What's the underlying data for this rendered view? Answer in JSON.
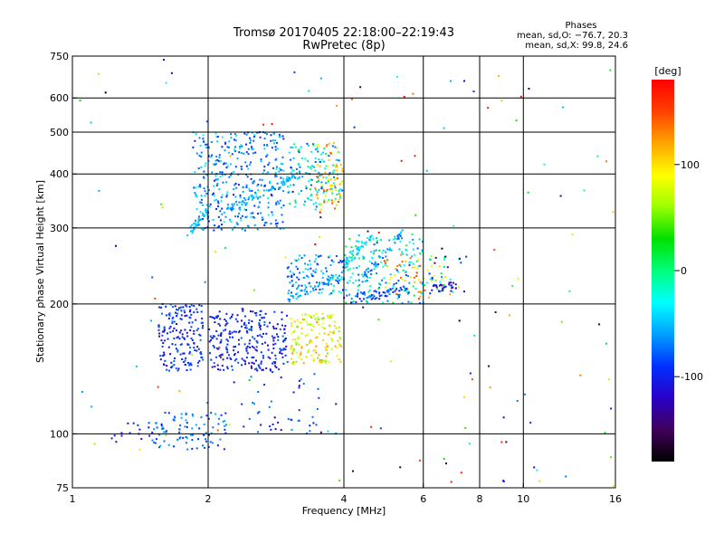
{
  "chart_data": {
    "type": "scatter",
    "title": "Tromsø 20170405 22:18:00–22:19:43",
    "subtitle": "RwPretec (8p)",
    "stats": {
      "heading": "Phases",
      "line_o": "mean, sd,O: −76.7, 20.3",
      "line_x": "mean, sd,X:  99.8, 24.6"
    },
    "xlabel": "Frequency [MHz]",
    "ylabel": "Stationary phase Virtual Height [km]",
    "x_scale": "log",
    "y_scale": "log",
    "xlim": [
      1,
      16
    ],
    "ylim": [
      75,
      750
    ],
    "xticks": [
      {
        "value": 1,
        "label": "1"
      },
      {
        "value": 2,
        "label": "2"
      },
      {
        "value": 4,
        "label": "4"
      },
      {
        "value": 6,
        "label": "6"
      },
      {
        "value": 8,
        "label": "8"
      },
      {
        "value": 10,
        "label": "10"
      },
      {
        "value": 16,
        "label": "16"
      }
    ],
    "yticks": [
      {
        "value": 75,
        "label": "75"
      },
      {
        "value": 100,
        "label": "100"
      },
      {
        "value": 200,
        "label": "200"
      },
      {
        "value": 300,
        "label": "300"
      },
      {
        "value": 400,
        "label": "400"
      },
      {
        "value": 500,
        "label": "500"
      },
      {
        "value": 600,
        "label": "600"
      },
      {
        "value": 750,
        "label": "750"
      }
    ],
    "x_gridlines": [
      2,
      4,
      6,
      8,
      10
    ],
    "y_gridlines": [
      100,
      200,
      300,
      400,
      500,
      600
    ],
    "grid": true,
    "colorbar": {
      "label": "[deg]",
      "range": [
        -180,
        180
      ],
      "ticks": [
        {
          "value": 100,
          "label": "100"
        },
        {
          "value": 0,
          "label": "0"
        },
        {
          "value": -100,
          "label": "-100"
        }
      ],
      "colors": [
        "#000000",
        "#40005a",
        "#2a00c8",
        "#0030ff",
        "#00a0ff",
        "#00ffff",
        "#00ff7a",
        "#00e000",
        "#9aff00",
        "#ffff00",
        "#ffa500",
        "#ff4000",
        "#ff0000"
      ]
    },
    "clusters": [
      {
        "x": [
          1.55,
          1.95
        ],
        "y": [
          140,
          200
        ],
        "phase": [
          -120,
          -70
        ],
        "n": 180
      },
      {
        "x": [
          2.0,
          3.0
        ],
        "y": [
          140,
          195
        ],
        "phase": [
          -125,
          -75
        ],
        "n": 260
      },
      {
        "x": [
          3.05,
          3.95
        ],
        "y": [
          145,
          190
        ],
        "phase": [
          50,
          130
        ],
        "n": 150
      },
      {
        "x": [
          1.85,
          2.95
        ],
        "y": [
          295,
          500
        ],
        "phase": [
          -100,
          -30
        ],
        "n": 380
      },
      {
        "x": [
          3.0,
          3.95
        ],
        "y": [
          330,
          470
        ],
        "phase": [
          -90,
          20
        ],
        "n": 140
      },
      {
        "x": [
          3.45,
          3.98
        ],
        "y": [
          330,
          480
        ],
        "phase": [
          70,
          150
        ],
        "n": 70
      },
      {
        "x": [
          3.0,
          4.0
        ],
        "y": [
          210,
          260
        ],
        "phase": [
          -100,
          -20
        ],
        "n": 110
      },
      {
        "x": [
          4.0,
          6.0
        ],
        "y": [
          200,
          290
        ],
        "phase": [
          -90,
          20
        ],
        "n": 180
      },
      {
        "x": [
          4.9,
          6.2
        ],
        "y": [
          205,
          260
        ],
        "phase": [
          80,
          160
        ],
        "n": 40
      },
      {
        "x": [
          6.0,
          7.5
        ],
        "y": [
          210,
          260
        ],
        "phase": [
          -150,
          120
        ],
        "n": 45
      },
      {
        "x": [
          1.5,
          2.2
        ],
        "y": [
          92,
          112
        ],
        "phase": [
          -110,
          -50
        ],
        "n": 90
      },
      {
        "x": [
          1.2,
          1.5
        ],
        "y": [
          95,
          110
        ],
        "phase": [
          -120,
          -80
        ],
        "n": 15
      },
      {
        "x": [
          2.2,
          3.6
        ],
        "y": [
          100,
          140
        ],
        "phase": [
          -120,
          -60
        ],
        "n": 45
      },
      {
        "x": [
          1.0,
          16.0
        ],
        "y": [
          75,
          750
        ],
        "phase": [
          -180,
          180
        ],
        "n": 150
      }
    ],
    "curve_bands": [
      {
        "x": [
          3.0,
          4.0
        ],
        "y_start": 205,
        "y_end": 235,
        "phase": [
          -80,
          -40
        ],
        "n": 50
      },
      {
        "x": [
          4.0,
          5.6
        ],
        "y_start": 205,
        "y_end": 215,
        "phase": [
          -110,
          -60
        ],
        "n": 60
      },
      {
        "x": [
          4.0,
          4.6
        ],
        "y_start": 245,
        "y_end": 290,
        "phase": [
          -60,
          -20
        ],
        "n": 40
      },
      {
        "x": [
          4.4,
          5.4
        ],
        "y_start": 230,
        "y_end": 290,
        "phase": [
          -90,
          -40
        ],
        "n": 35
      },
      {
        "x": [
          6.2,
          7.1
        ],
        "y_start": 215,
        "y_end": 220,
        "phase": [
          -140,
          -100
        ],
        "n": 25
      },
      {
        "x": [
          2.2,
          3.2
        ],
        "y_start": 330,
        "y_end": 400,
        "phase": [
          -70,
          -40
        ],
        "n": 70
      },
      {
        "x": [
          1.8,
          2.0
        ],
        "y_start": 290,
        "y_end": 330,
        "phase": [
          -60,
          -40
        ],
        "n": 30
      }
    ]
  }
}
